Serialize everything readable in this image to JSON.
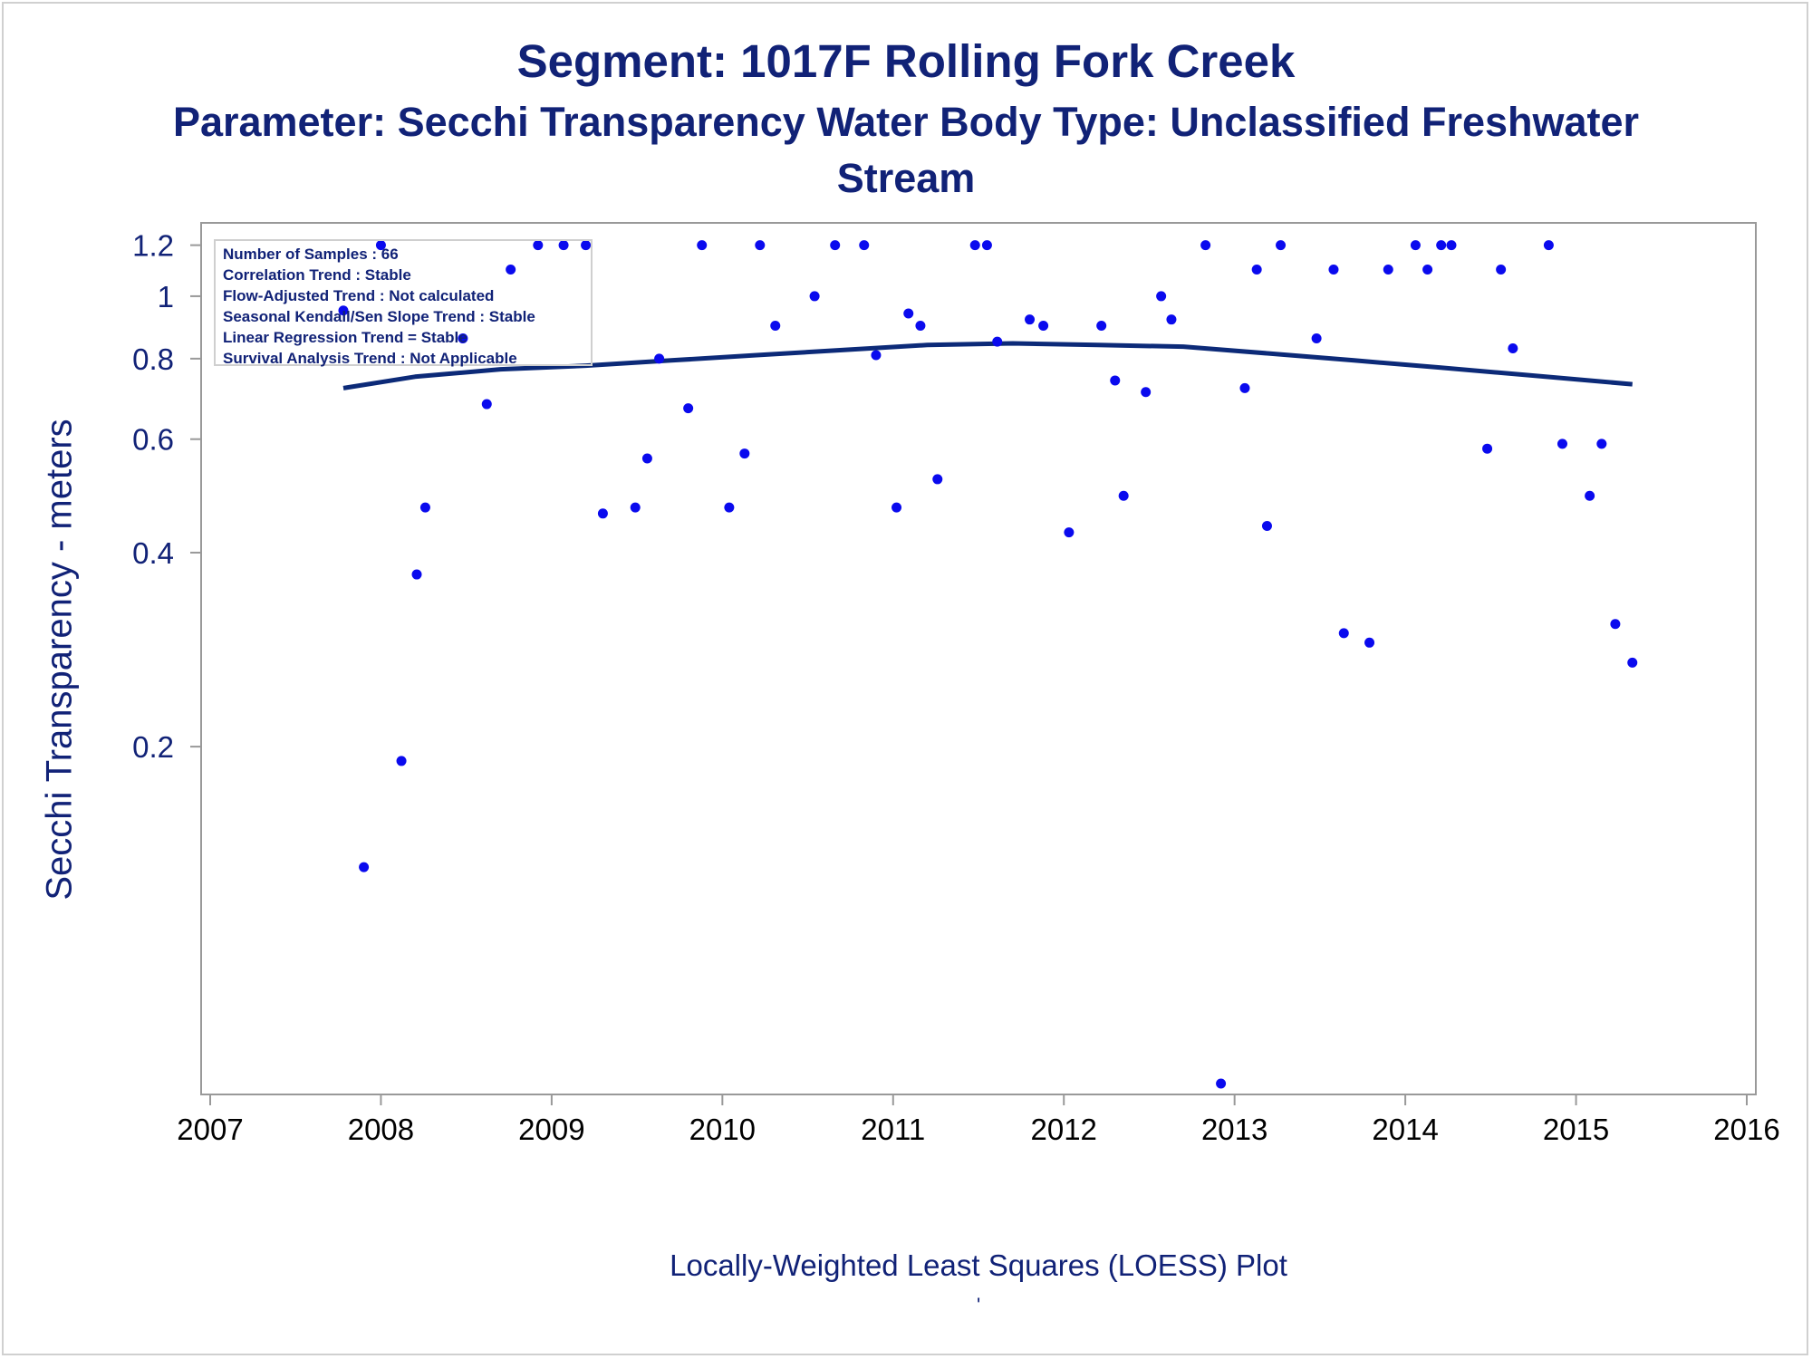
{
  "title": "Segment: 1017F  Rolling Fork Creek",
  "subtitle": "Parameter: Secchi Transparency   Water Body Type: Unclassified Freshwater Stream",
  "footer": "Locally-Weighted Least Squares (LOESS) Plot",
  "footer_mark": "'",
  "stats_box": [
    "Number of Samples : 66",
    "Correlation Trend : Stable",
    "Flow-Adjusted Trend : Not calculated",
    "Seasonal Kendall/Sen Slope Trend : Stable",
    "Linear Regression Trend = Stable",
    "Survival Analysis Trend : Not Applicable"
  ],
  "colors": {
    "text": "#112277",
    "points": "#0a0aee",
    "loess": "#0c2a78",
    "axis": "#999999"
  },
  "chart_data": {
    "type": "scatter",
    "ylabel": "Secchi Transparency - meters",
    "xlabel": "",
    "y_scale": "log",
    "xlim": [
      2007,
      2016
    ],
    "ylim": [
      0.06,
      1.25
    ],
    "x_ticks": [
      "2007",
      "2008",
      "2009",
      "2010",
      "2011",
      "2012",
      "2013",
      "2014",
      "2015",
      "2016"
    ],
    "y_ticks": [
      "0.2",
      "0.4",
      "0.6",
      "0.8",
      "1",
      "1.2"
    ],
    "grid": false,
    "series": [
      {
        "points": [
          [
            2007.78,
            0.95
          ],
          [
            2007.9,
            0.13
          ],
          [
            2008.0,
            1.2
          ],
          [
            2008.12,
            0.19
          ],
          [
            2008.21,
            0.37
          ],
          [
            2008.26,
            0.47
          ],
          [
            2008.48,
            0.86
          ],
          [
            2008.62,
            0.68
          ],
          [
            2008.76,
            1.1
          ],
          [
            2008.92,
            1.2
          ],
          [
            2009.07,
            1.2
          ],
          [
            2009.2,
            1.2
          ],
          [
            2009.3,
            0.46
          ],
          [
            2009.49,
            0.47
          ],
          [
            2009.56,
            0.56
          ],
          [
            2009.63,
            0.8
          ],
          [
            2009.8,
            0.67
          ],
          [
            2009.88,
            1.2
          ],
          [
            2010.04,
            0.47
          ],
          [
            2010.13,
            0.57
          ],
          [
            2010.22,
            1.2
          ],
          [
            2010.31,
            0.9
          ],
          [
            2010.54,
            1.0
          ],
          [
            2010.66,
            1.2
          ],
          [
            2010.83,
            1.2
          ],
          [
            2010.9,
            0.81
          ],
          [
            2011.02,
            0.47
          ],
          [
            2011.09,
            0.94
          ],
          [
            2011.16,
            0.9
          ],
          [
            2011.26,
            0.52
          ],
          [
            2011.48,
            1.2
          ],
          [
            2011.55,
            1.2
          ],
          [
            2011.61,
            0.85
          ],
          [
            2011.8,
            0.92
          ],
          [
            2011.88,
            0.9
          ],
          [
            2012.03,
            0.43
          ],
          [
            2012.22,
            0.9
          ],
          [
            2012.3,
            0.74
          ],
          [
            2012.35,
            0.49
          ],
          [
            2012.48,
            0.71
          ],
          [
            2012.57,
            1.0
          ],
          [
            2012.63,
            0.92
          ],
          [
            2012.83,
            1.2
          ],
          [
            2012.92,
            0.06
          ],
          [
            2013.06,
            0.72
          ],
          [
            2013.13,
            1.1
          ],
          [
            2013.19,
            0.44
          ],
          [
            2013.27,
            1.2
          ],
          [
            2013.48,
            0.86
          ],
          [
            2013.58,
            1.1
          ],
          [
            2013.64,
            0.3
          ],
          [
            2013.79,
            0.29
          ],
          [
            2013.9,
            1.1
          ],
          [
            2014.06,
            1.2
          ],
          [
            2014.13,
            1.1
          ],
          [
            2014.21,
            1.2
          ],
          [
            2014.27,
            1.2
          ],
          [
            2014.48,
            0.58
          ],
          [
            2014.56,
            1.1
          ],
          [
            2014.63,
            0.83
          ],
          [
            2014.84,
            1.2
          ],
          [
            2014.92,
            0.59
          ],
          [
            2015.08,
            0.49
          ],
          [
            2015.15,
            0.59
          ],
          [
            2015.23,
            0.31
          ],
          [
            2015.33,
            0.27
          ]
        ]
      },
      {
        "type": "line",
        "points": [
          [
            2007.78,
            0.72
          ],
          [
            2008.2,
            0.75
          ],
          [
            2008.7,
            0.77
          ],
          [
            2009.2,
            0.78
          ],
          [
            2009.7,
            0.795
          ],
          [
            2010.2,
            0.81
          ],
          [
            2010.7,
            0.825
          ],
          [
            2011.2,
            0.84
          ],
          [
            2011.7,
            0.845
          ],
          [
            2012.2,
            0.84
          ],
          [
            2012.7,
            0.835
          ],
          [
            2013.2,
            0.815
          ],
          [
            2013.7,
            0.795
          ],
          [
            2014.2,
            0.775
          ],
          [
            2014.7,
            0.755
          ],
          [
            2015.33,
            0.73
          ]
        ]
      }
    ]
  }
}
